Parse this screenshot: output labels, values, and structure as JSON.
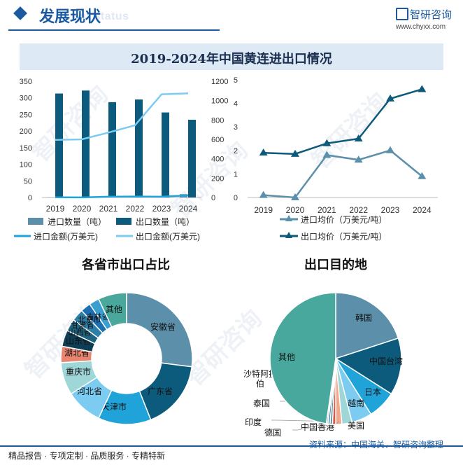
{
  "header": {
    "title": "发展现状",
    "subtitle_en": "ent status"
  },
  "brand": {
    "name": "智研咨询",
    "url": "www.chyxx.com",
    "watermark": "智研咨询"
  },
  "colors": {
    "import_qty": "#5b8faa",
    "export_qty": "#0c5a7c",
    "import_amt": "#1fa3d8",
    "export_amt": "#7ccbf0",
    "import_price": "#5b8faa",
    "export_price": "#0e5a7a",
    "title_bg": "#dde9f5",
    "brand": "#1b5aa0"
  },
  "chart_data": [
    {
      "type": "bar",
      "title": "2019-2024年中国黄连进出口情况",
      "categories": [
        "2019",
        "2020",
        "2021",
        "2022",
        "2023",
        "2024"
      ],
      "ylim": [
        0,
        350
      ],
      "yticks": [
        "0",
        "50",
        "100",
        "150",
        "200",
        "250",
        "300",
        "350"
      ],
      "y2lim": [
        0,
        1200
      ],
      "y2ticks": [
        "0",
        "200",
        "400",
        "600",
        "800",
        "1000",
        "1200"
      ],
      "series": [
        {
          "name": "进口数量（吨）",
          "kind": "bar",
          "axis": "left",
          "values": [
            0.5,
            0.3,
            2,
            2,
            3,
            10
          ]
        },
        {
          "name": "出口数量（吨）",
          "kind": "bar",
          "axis": "left",
          "values": [
            313,
            322,
            287,
            295,
            256,
            234
          ]
        },
        {
          "name": "进口金额(万美元)",
          "kind": "line",
          "axis": "right",
          "values": [
            2,
            1,
            8,
            10,
            8,
            22
          ]
        },
        {
          "name": "出口金额(万美元)",
          "kind": "line",
          "axis": "right",
          "values": [
            595,
            600,
            670,
            745,
            1065,
            1075
          ]
        }
      ]
    },
    {
      "type": "line",
      "categories": [
        "2019",
        "2020",
        "2021",
        "2022",
        "2023",
        "2024"
      ],
      "ylim": [
        0,
        5
      ],
      "yticks": [
        "0",
        "1",
        "2",
        "3",
        "4",
        "5"
      ],
      "series": [
        {
          "name": "进口均价（万美元/吨）",
          "values": [
            0.1,
            0.0,
            1.8,
            1.6,
            2.0,
            0.9
          ]
        },
        {
          "name": "出口均价（万美元/吨）",
          "values": [
            1.9,
            1.85,
            2.3,
            2.5,
            4.2,
            4.6
          ]
        }
      ]
    },
    {
      "type": "pie",
      "title": "各省市出口占比",
      "categories": [
        "安徽省",
        "广东省",
        "天津市",
        "河北省",
        "重庆市",
        "湖北省",
        "山东省",
        "山西省",
        "甘肃省",
        "北京市",
        "吉林省",
        "其他"
      ],
      "values": [
        27,
        17,
        13,
        9,
        8,
        4,
        4,
        3,
        3,
        2.5,
        2.5,
        7
      ],
      "colors": [
        "#5b8faa",
        "#0c5a7c",
        "#1fa3d8",
        "#7ccbf0",
        "#9fd6d8",
        "#e8846f",
        "#0e3e55",
        "#1e6480",
        "#2b7fa8",
        "#1c6fb0",
        "#3a9fd0",
        "#4aa79c"
      ]
    },
    {
      "type": "pie",
      "title": "出口目的地",
      "categories": [
        "韩国",
        "中国台湾",
        "日本",
        "越南",
        "美国",
        "中国香港",
        "德国",
        "印度",
        "泰国",
        "沙特阿拉伯",
        "其他"
      ],
      "values": [
        20,
        14,
        7,
        5,
        2.5,
        1.5,
        0.8,
        0.6,
        0.5,
        0.4,
        47.7
      ],
      "colors": [
        "#5b8faa",
        "#0c5a7c",
        "#1fa3d8",
        "#7ccbf0",
        "#9fd6d8",
        "#f4a58a",
        "#e5513b",
        "#4a8fa8",
        "#2e7a94",
        "#a8c8d0",
        "#49a89e"
      ]
    }
  ],
  "footer": {
    "left": "精品报告 · 专项定制 · 品质服务 · 专精特新",
    "source": "资料来源：中国海关、智研咨询整理"
  }
}
